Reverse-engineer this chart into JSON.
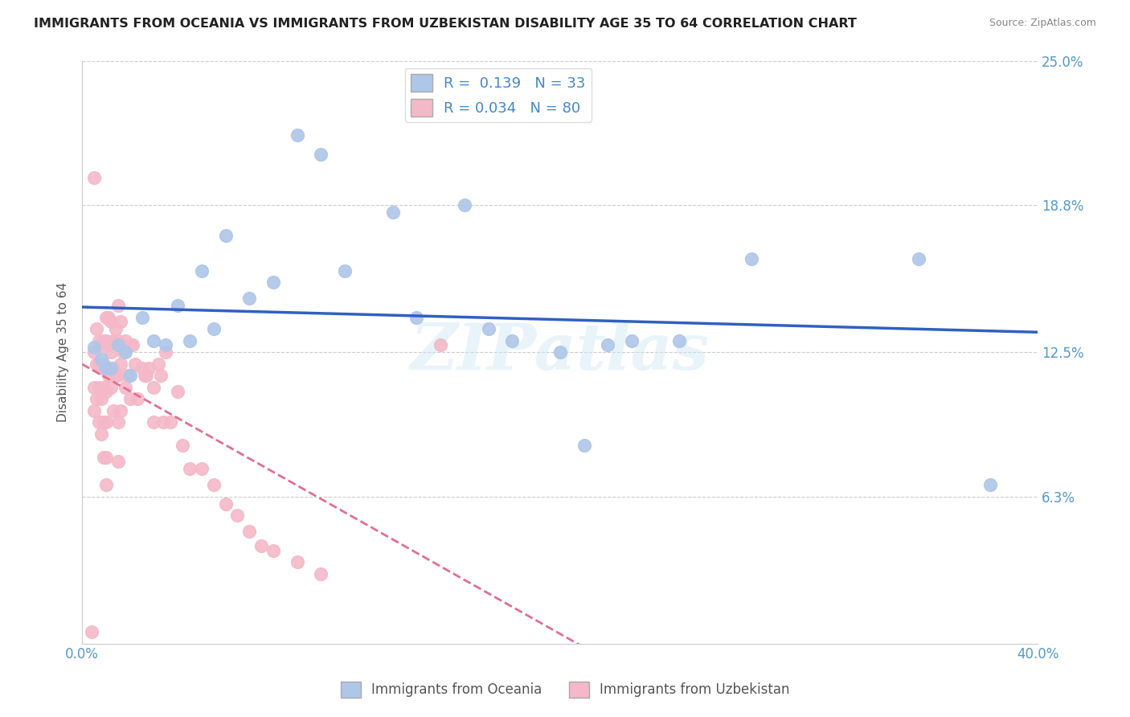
{
  "title": "IMMIGRANTS FROM OCEANIA VS IMMIGRANTS FROM UZBEKISTAN DISABILITY AGE 35 TO 64 CORRELATION CHART",
  "source": "Source: ZipAtlas.com",
  "ylabel": "Disability Age 35 to 64",
  "xlim": [
    0.0,
    0.4
  ],
  "ylim": [
    0.0,
    0.25
  ],
  "xticks": [
    0.0,
    0.1,
    0.2,
    0.3,
    0.4
  ],
  "xticklabels": [
    "0.0%",
    "",
    "",
    "",
    "40.0%"
  ],
  "ytick_positions": [
    0.0,
    0.063,
    0.125,
    0.188,
    0.25
  ],
  "ytick_labels": [
    "",
    "6.3%",
    "12.5%",
    "18.8%",
    "25.0%"
  ],
  "oceania_R": 0.139,
  "oceania_N": 33,
  "uzbekistan_R": 0.034,
  "uzbekistan_N": 80,
  "oceania_color": "#aec6e8",
  "uzbekistan_color": "#f4b8c8",
  "oceania_line_color": "#3060c0",
  "uzbekistan_line_color": "#e07090",
  "watermark": "ZIPatlas",
  "oceania_x": [
    0.005,
    0.008,
    0.01,
    0.012,
    0.015,
    0.018,
    0.02,
    0.025,
    0.03,
    0.035,
    0.04,
    0.045,
    0.05,
    0.055,
    0.06,
    0.07,
    0.08,
    0.09,
    0.1,
    0.11,
    0.13,
    0.14,
    0.16,
    0.17,
    0.18,
    0.2,
    0.21,
    0.22,
    0.23,
    0.25,
    0.28,
    0.35,
    0.38
  ],
  "oceania_y": [
    0.127,
    0.122,
    0.118,
    0.118,
    0.128,
    0.125,
    0.115,
    0.14,
    0.13,
    0.128,
    0.145,
    0.13,
    0.16,
    0.135,
    0.175,
    0.148,
    0.155,
    0.218,
    0.21,
    0.16,
    0.185,
    0.14,
    0.188,
    0.135,
    0.13,
    0.125,
    0.085,
    0.128,
    0.13,
    0.13,
    0.165,
    0.165,
    0.068
  ],
  "uzbekistan_x": [
    0.004,
    0.005,
    0.005,
    0.005,
    0.005,
    0.006,
    0.006,
    0.006,
    0.007,
    0.007,
    0.007,
    0.007,
    0.008,
    0.008,
    0.008,
    0.008,
    0.009,
    0.009,
    0.009,
    0.009,
    0.009,
    0.01,
    0.01,
    0.01,
    0.01,
    0.01,
    0.01,
    0.01,
    0.011,
    0.011,
    0.011,
    0.012,
    0.012,
    0.012,
    0.013,
    0.013,
    0.013,
    0.014,
    0.014,
    0.015,
    0.015,
    0.015,
    0.015,
    0.015,
    0.016,
    0.016,
    0.016,
    0.017,
    0.018,
    0.018,
    0.019,
    0.02,
    0.02,
    0.021,
    0.022,
    0.023,
    0.025,
    0.026,
    0.027,
    0.028,
    0.03,
    0.03,
    0.032,
    0.033,
    0.034,
    0.035,
    0.037,
    0.04,
    0.042,
    0.045,
    0.05,
    0.055,
    0.06,
    0.065,
    0.07,
    0.075,
    0.08,
    0.09,
    0.1,
    0.15
  ],
  "uzbekistan_y": [
    0.005,
    0.2,
    0.125,
    0.11,
    0.1,
    0.135,
    0.12,
    0.105,
    0.13,
    0.12,
    0.11,
    0.095,
    0.128,
    0.118,
    0.105,
    0.09,
    0.13,
    0.12,
    0.11,
    0.095,
    0.08,
    0.14,
    0.13,
    0.118,
    0.108,
    0.095,
    0.08,
    0.068,
    0.14,
    0.128,
    0.115,
    0.138,
    0.125,
    0.11,
    0.13,
    0.118,
    0.1,
    0.135,
    0.115,
    0.145,
    0.13,
    0.115,
    0.095,
    0.078,
    0.138,
    0.12,
    0.1,
    0.125,
    0.13,
    0.11,
    0.115,
    0.128,
    0.105,
    0.128,
    0.12,
    0.105,
    0.118,
    0.115,
    0.115,
    0.118,
    0.11,
    0.095,
    0.12,
    0.115,
    0.095,
    0.125,
    0.095,
    0.108,
    0.085,
    0.075,
    0.075,
    0.068,
    0.06,
    0.055,
    0.048,
    0.042,
    0.04,
    0.035,
    0.03,
    0.128
  ]
}
